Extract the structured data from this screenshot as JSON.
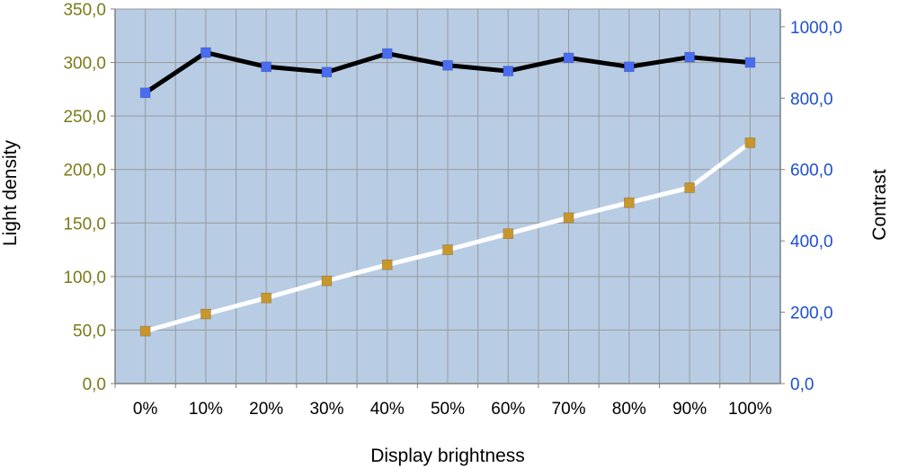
{
  "chart_data": {
    "type": "line",
    "xlabel": "Display brightness",
    "ylabel_left": "Light density",
    "ylabel_right": "Contrast",
    "categories": [
      "0%",
      "10%",
      "20%",
      "30%",
      "40%",
      "50%",
      "60%",
      "70%",
      "80%",
      "90%",
      "100%"
    ],
    "ylim_left": [
      0,
      350
    ],
    "ylim_right": [
      0,
      1050
    ],
    "yticks_left": [
      "0,0",
      "50,0",
      "100,0",
      "150,0",
      "200,0",
      "250,0",
      "300,0",
      "350,0"
    ],
    "yticks_right": [
      "0,0",
      "200,0",
      "400,0",
      "600,0",
      "800,0",
      "1000,0"
    ],
    "grid": true,
    "plot_background": "#b8cce4",
    "left_axis_color": "#7a7a1a",
    "right_axis_color": "#1f4fd0",
    "series": [
      {
        "axis": "left",
        "line_color": "#ffffff",
        "marker_color": "#c8962a",
        "values": [
          49,
          65,
          80,
          96,
          111,
          125,
          140,
          155,
          169,
          183,
          225
        ]
      },
      {
        "axis": "right",
        "line_color": "#000000",
        "marker_color": "#4a6cf0",
        "values": [
          815,
          928,
          888,
          873,
          925,
          892,
          876,
          913,
          888,
          915,
          900
        ]
      }
    ]
  }
}
